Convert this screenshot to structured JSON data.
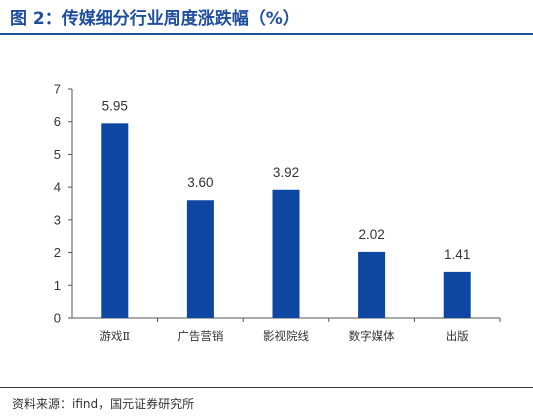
{
  "title": "图 2：传媒细分行业周度涨跌幅（%）",
  "source": "资料来源：ifind，国元证券研究所",
  "colors": {
    "accent": "#1f4e9e",
    "bar": "#0d47a1"
  },
  "chart_data": {
    "type": "bar",
    "title": "图 2：传媒细分行业周度涨跌幅（%）",
    "categories": [
      "游戏Ⅱ",
      "广告营销",
      "影视院线",
      "数字媒体",
      "出版"
    ],
    "values": [
      5.95,
      3.6,
      3.92,
      2.02,
      1.41
    ],
    "value_labels": [
      "5.95",
      "3.60",
      "3.92",
      "2.02",
      "1.41"
    ],
    "yticks": [
      0,
      1,
      2,
      3,
      4,
      5,
      6,
      7
    ],
    "ylim": [
      0,
      7
    ],
    "xlabel": "",
    "ylabel": "",
    "grid": false,
    "legend": "none"
  }
}
